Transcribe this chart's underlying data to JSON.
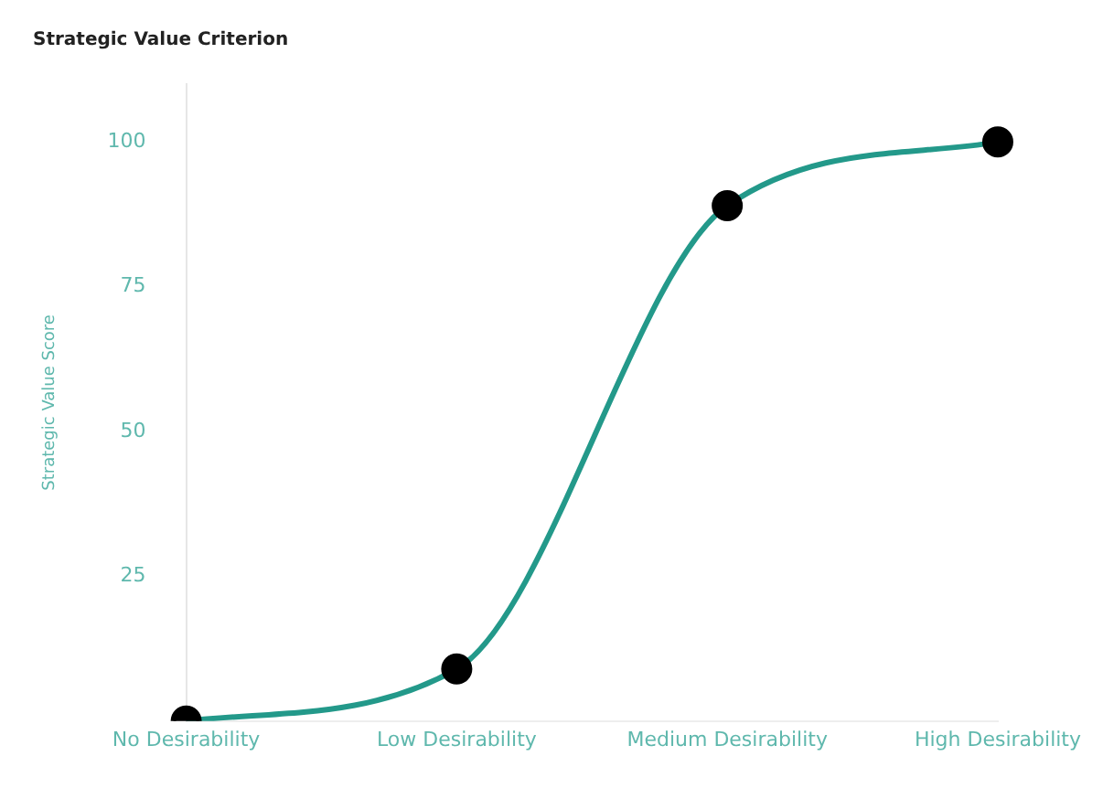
{
  "chart_data": {
    "type": "line",
    "title": "Strategic Value Criterion",
    "ylabel": "Strategic Value Score",
    "categories": [
      "No Desirability",
      "Low Desirability",
      "Medium Desirability",
      "High Desirability"
    ],
    "series": [
      {
        "color": "#23998a",
        "values": [
          0,
          9,
          89,
          100
        ]
      }
    ],
    "ylim": [
      0,
      110
    ],
    "yticks": [
      25,
      50,
      75,
      100
    ],
    "grid": false,
    "legend": false,
    "marker": "circle",
    "line_style": "solid"
  }
}
